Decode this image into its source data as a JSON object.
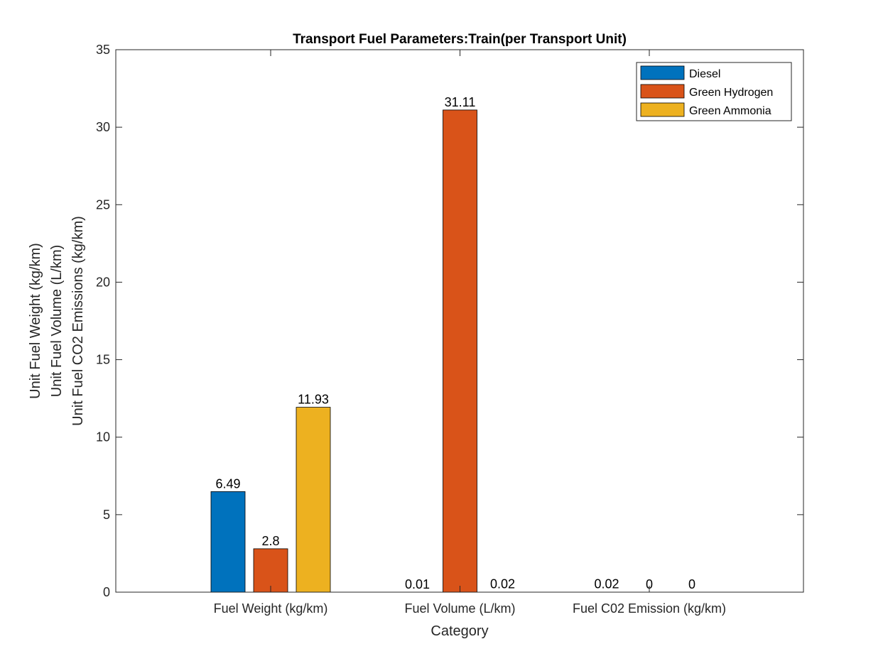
{
  "chart_data": {
    "type": "bar",
    "title": "Transport Fuel Parameters:Train(per Transport Unit)",
    "xlabel": "Category",
    "ylabel_lines": [
      "Unit Fuel Weight (kg/km)",
      "Unit Fuel Volume (L/km)",
      "Unit Fuel CO2 Emissions (kg/km)"
    ],
    "categories": [
      "Fuel Weight (kg/km)",
      "Fuel Volume (L/km)",
      "Fuel C02 Emission (kg/km)"
    ],
    "series": [
      {
        "name": "Diesel",
        "color": "#0072BD",
        "values": [
          6.49,
          0.01,
          0.02
        ],
        "labels": [
          "6.49",
          "0.01",
          "0.02"
        ]
      },
      {
        "name": "Green Hydrogen",
        "color": "#D95319",
        "values": [
          2.8,
          31.11,
          0
        ],
        "labels": [
          "2.8",
          "31.11",
          "0"
        ]
      },
      {
        "name": "Green Ammonia",
        "color": "#EDB120",
        "values": [
          11.93,
          0.02,
          0
        ],
        "labels": [
          "11.93",
          "0.02",
          "0"
        ]
      }
    ],
    "ylim": [
      0,
      35
    ],
    "yticks": [
      0,
      5,
      10,
      15,
      20,
      25,
      30,
      35
    ],
    "grid": false,
    "legend_position": "top-right"
  }
}
